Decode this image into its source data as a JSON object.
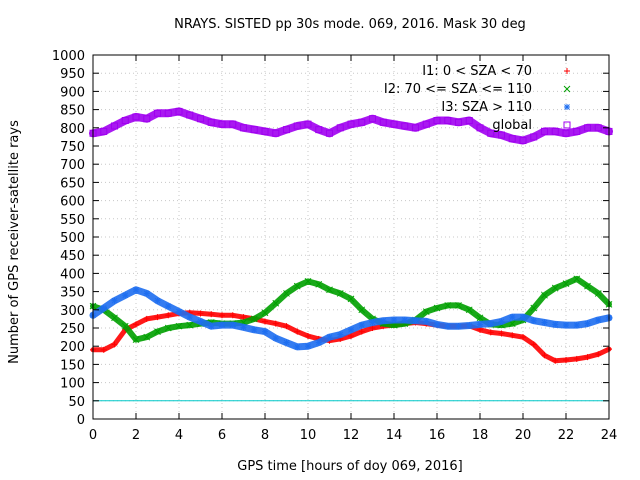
{
  "chart_data": {
    "type": "scatter",
    "title": "NRAYS. SISTED pp 30s mode. 069, 2016. Mask 30 deg",
    "xlabel": "GPS time [hours of doy 069, 2016]",
    "ylabel": "Number of GPS receiver-satellite rays",
    "xlim": [
      0,
      24
    ],
    "ylim": [
      0,
      1000
    ],
    "x_ticks": [
      "0",
      "2",
      "4",
      "6",
      "8",
      "10",
      "12",
      "14",
      "16",
      "18",
      "20",
      "22",
      "24"
    ],
    "y_ticks": [
      "0",
      "50",
      "100",
      "150",
      "200",
      "250",
      "300",
      "350",
      "400",
      "450",
      "500",
      "550",
      "600",
      "650",
      "700",
      "750",
      "800",
      "850",
      "900",
      "950",
      "1000"
    ],
    "grid": true,
    "legend_position": "top-right",
    "series": [
      {
        "name": "I1: 0 < SZA < 70",
        "marker": "+",
        "color": "#ff0000",
        "x": [
          0,
          0.5,
          1,
          1.5,
          2,
          2.5,
          3,
          3.5,
          4,
          4.5,
          5,
          5.5,
          6,
          6.5,
          7,
          7.5,
          8,
          8.5,
          9,
          9.5,
          10,
          10.5,
          11,
          11.5,
          12,
          12.5,
          13,
          13.5,
          14,
          14.5,
          15,
          15.5,
          16,
          16.5,
          17,
          17.5,
          18,
          18.5,
          19,
          19.5,
          20,
          20.5,
          21,
          21.5,
          22,
          22.5,
          23,
          23.5,
          24
        ],
        "values": [
          190,
          190,
          205,
          245,
          260,
          275,
          280,
          285,
          290,
          292,
          290,
          288,
          285,
          285,
          280,
          275,
          268,
          262,
          255,
          240,
          228,
          220,
          215,
          220,
          228,
          240,
          250,
          255,
          258,
          262,
          265,
          262,
          258,
          255,
          255,
          256,
          245,
          238,
          235,
          230,
          225,
          205,
          175,
          160,
          162,
          165,
          170,
          178,
          192
        ]
      },
      {
        "name": "I2: 70 <= SZA <= 110",
        "marker": "x",
        "color": "#00a000",
        "x": [
          0,
          0.5,
          1,
          1.5,
          2,
          2.5,
          3,
          3.5,
          4,
          4.5,
          5,
          5.5,
          6,
          6.5,
          7,
          7.5,
          8,
          8.5,
          9,
          9.5,
          10,
          10.5,
          11,
          11.5,
          12,
          12.5,
          13,
          13.5,
          14,
          14.5,
          15,
          15.5,
          16,
          16.5,
          17,
          17.5,
          18,
          18.5,
          19,
          19.5,
          20,
          20.5,
          21,
          21.5,
          22,
          22.5,
          23,
          23.5,
          24
        ],
        "values": [
          310,
          300,
          278,
          255,
          218,
          225,
          240,
          250,
          255,
          258,
          262,
          265,
          262,
          262,
          265,
          275,
          292,
          318,
          345,
          365,
          378,
          370,
          355,
          345,
          330,
          300,
          275,
          262,
          258,
          262,
          272,
          295,
          305,
          312,
          312,
          300,
          278,
          260,
          258,
          262,
          272,
          305,
          340,
          360,
          372,
          385,
          365,
          345,
          315
        ]
      },
      {
        "name": "I3: SZA > 110",
        "marker": "*",
        "color": "#1e6ef0",
        "x": [
          0,
          0.5,
          1,
          1.5,
          2,
          2.5,
          3,
          3.5,
          4,
          4.5,
          5,
          5.5,
          6,
          6.5,
          7,
          7.5,
          8,
          8.5,
          9,
          9.5,
          10,
          10.5,
          11,
          11.5,
          12,
          12.5,
          13,
          13.5,
          14,
          14.5,
          15,
          15.5,
          16,
          16.5,
          17,
          17.5,
          18,
          18.5,
          19,
          19.5,
          20,
          20.5,
          21,
          21.5,
          22,
          22.5,
          23,
          23.5,
          24
        ],
        "values": [
          285,
          305,
          325,
          340,
          355,
          345,
          325,
          310,
          295,
          280,
          268,
          255,
          258,
          258,
          252,
          245,
          240,
          222,
          210,
          198,
          200,
          210,
          225,
          232,
          245,
          258,
          265,
          270,
          272,
          272,
          270,
          268,
          260,
          255,
          255,
          257,
          260,
          262,
          268,
          280,
          280,
          270,
          265,
          260,
          258,
          258,
          262,
          272,
          278
        ]
      },
      {
        "name": "global",
        "marker": "square",
        "color": "#a000f0",
        "x": [
          0,
          0.5,
          1,
          1.5,
          2,
          2.5,
          3,
          3.5,
          4,
          4.5,
          5,
          5.5,
          6,
          6.5,
          7,
          7.5,
          8,
          8.5,
          9,
          9.5,
          10,
          10.5,
          11,
          11.5,
          12,
          12.5,
          13,
          13.5,
          14,
          14.5,
          15,
          15.5,
          16,
          16.5,
          17,
          17.5,
          18,
          18.5,
          19,
          19.5,
          20,
          20.5,
          21,
          21.5,
          22,
          22.5,
          23,
          23.5,
          24
        ],
        "values": [
          785,
          790,
          805,
          820,
          830,
          825,
          840,
          840,
          845,
          835,
          825,
          815,
          810,
          810,
          800,
          795,
          790,
          785,
          795,
          805,
          810,
          795,
          785,
          800,
          810,
          815,
          825,
          815,
          810,
          805,
          800,
          810,
          820,
          820,
          815,
          820,
          800,
          785,
          780,
          770,
          765,
          775,
          790,
          790,
          785,
          790,
          800,
          800,
          790
        ]
      },
      {
        "name": "",
        "marker": "line",
        "color": "#00c8c8",
        "x": [
          0,
          24
        ],
        "values": [
          50,
          50
        ]
      }
    ]
  }
}
